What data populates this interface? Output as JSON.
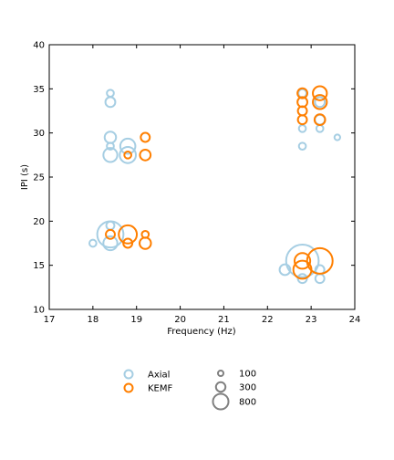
{
  "chart_data": {
    "type": "scatter",
    "xlabel": "Frequency (Hz)",
    "ylabel": "IPI (s)",
    "xlim": [
      17,
      24
    ],
    "ylim": [
      10,
      40
    ],
    "xticks": [
      17,
      18,
      19,
      20,
      21,
      22,
      23,
      24
    ],
    "yticks": [
      10,
      15,
      20,
      25,
      30,
      35,
      40
    ],
    "grid": false,
    "colors": {
      "Axial": "#a6cee3",
      "KEMF": "#ff7f00"
    },
    "series": [
      {
        "name": "Axial",
        "points": [
          {
            "x": 18.4,
            "y": 34.5,
            "s": 30
          },
          {
            "x": 18.4,
            "y": 33.5,
            "s": 60
          },
          {
            "x": 18.4,
            "y": 29.5,
            "s": 80
          },
          {
            "x": 18.4,
            "y": 28.5,
            "s": 30
          },
          {
            "x": 18.4,
            "y": 27.5,
            "s": 120
          },
          {
            "x": 18.8,
            "y": 28.5,
            "s": 140
          },
          {
            "x": 18.8,
            "y": 27.5,
            "s": 160
          },
          {
            "x": 18.0,
            "y": 17.5,
            "s": 30
          },
          {
            "x": 18.4,
            "y": 19.5,
            "s": 40
          },
          {
            "x": 18.4,
            "y": 18.5,
            "s": 420
          },
          {
            "x": 18.4,
            "y": 17.5,
            "s": 120
          },
          {
            "x": 22.8,
            "y": 34.5,
            "s": 40
          },
          {
            "x": 23.2,
            "y": 33.5,
            "s": 60
          },
          {
            "x": 23.2,
            "y": 31.5,
            "s": 60
          },
          {
            "x": 22.8,
            "y": 30.5,
            "s": 30
          },
          {
            "x": 23.2,
            "y": 30.5,
            "s": 30
          },
          {
            "x": 22.8,
            "y": 28.5,
            "s": 30
          },
          {
            "x": 23.6,
            "y": 29.5,
            "s": 20
          },
          {
            "x": 22.4,
            "y": 14.5,
            "s": 70
          },
          {
            "x": 22.8,
            "y": 15.5,
            "s": 650
          },
          {
            "x": 22.8,
            "y": 13.5,
            "s": 50
          },
          {
            "x": 23.2,
            "y": 14.5,
            "s": 50
          },
          {
            "x": 23.2,
            "y": 13.5,
            "s": 50
          }
        ]
      },
      {
        "name": "KEMF",
        "points": [
          {
            "x": 18.8,
            "y": 27.5,
            "s": 30
          },
          {
            "x": 19.2,
            "y": 29.5,
            "s": 50
          },
          {
            "x": 19.2,
            "y": 27.5,
            "s": 70
          },
          {
            "x": 18.4,
            "y": 18.5,
            "s": 50
          },
          {
            "x": 18.8,
            "y": 18.5,
            "s": 200
          },
          {
            "x": 18.8,
            "y": 17.5,
            "s": 50
          },
          {
            "x": 19.2,
            "y": 18.5,
            "s": 30
          },
          {
            "x": 19.2,
            "y": 17.5,
            "s": 80
          },
          {
            "x": 22.8,
            "y": 34.5,
            "s": 60
          },
          {
            "x": 22.8,
            "y": 33.5,
            "s": 60
          },
          {
            "x": 22.8,
            "y": 32.5,
            "s": 50
          },
          {
            "x": 22.8,
            "y": 31.5,
            "s": 50
          },
          {
            "x": 23.2,
            "y": 34.5,
            "s": 120
          },
          {
            "x": 23.2,
            "y": 33.5,
            "s": 120
          },
          {
            "x": 23.2,
            "y": 31.5,
            "s": 70
          },
          {
            "x": 22.8,
            "y": 15.5,
            "s": 150
          },
          {
            "x": 22.8,
            "y": 14.5,
            "s": 200
          },
          {
            "x": 23.2,
            "y": 15.5,
            "s": 400
          }
        ]
      }
    ],
    "legend": {
      "placement": "bottom",
      "series_entries": [
        {
          "label": "Axial",
          "color": "#a6cee3"
        },
        {
          "label": "KEMF",
          "color": "#ff7f00"
        }
      ],
      "size_entries": [
        {
          "label": "100",
          "s": 100
        },
        {
          "label": "300",
          "s": 300
        },
        {
          "label": "800",
          "s": 800
        }
      ],
      "size_color": "#808080"
    }
  }
}
